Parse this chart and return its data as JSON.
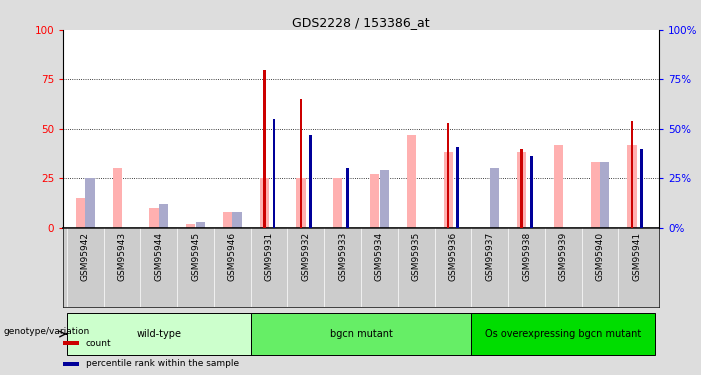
{
  "title": "GDS2228 / 153386_at",
  "samples": [
    "GSM95942",
    "GSM95943",
    "GSM95944",
    "GSM95945",
    "GSM95946",
    "GSM95931",
    "GSM95932",
    "GSM95933",
    "GSM95934",
    "GSM95935",
    "GSM95936",
    "GSM95937",
    "GSM95938",
    "GSM95939",
    "GSM95940",
    "GSM95941"
  ],
  "groups": [
    {
      "name": "wild-type",
      "indices": [
        0,
        1,
        2,
        3,
        4
      ],
      "color": "#ccffcc"
    },
    {
      "name": "bgcn mutant",
      "indices": [
        5,
        6,
        7,
        8,
        9,
        10
      ],
      "color": "#66ee66"
    },
    {
      "name": "Os overexpressing bgcn mutant",
      "indices": [
        11,
        12,
        13,
        14,
        15
      ],
      "color": "#00dd00"
    }
  ],
  "red_bars": [
    0,
    0,
    0,
    0,
    0,
    80,
    65,
    0,
    0,
    0,
    53,
    0,
    40,
    0,
    0,
    54
  ],
  "blue_bars": [
    0,
    0,
    0,
    0,
    0,
    55,
    47,
    30,
    0,
    0,
    41,
    0,
    36,
    0,
    0,
    40
  ],
  "pink_bars": [
    15,
    30,
    10,
    2,
    8,
    25,
    25,
    25,
    27,
    47,
    38,
    0,
    38,
    42,
    33,
    42
  ],
  "lightblue_bars": [
    25,
    0,
    12,
    3,
    8,
    0,
    0,
    0,
    29,
    0,
    0,
    30,
    0,
    0,
    33,
    0
  ],
  "ylim": [
    0,
    100
  ],
  "yticks": [
    0,
    25,
    50,
    75,
    100
  ],
  "bg_color": "#dddddd",
  "plot_bg": "#ffffff",
  "tick_area_bg": "#cccccc",
  "red_color": "#cc0000",
  "blue_color": "#000099",
  "pink_color": "#ffb0b0",
  "lightblue_color": "#aaaacc",
  "group_label": "genotype/variation",
  "pink_bar_width": 0.25,
  "lightblue_bar_width": 0.25,
  "red_bar_width": 0.07,
  "blue_bar_width": 0.07
}
